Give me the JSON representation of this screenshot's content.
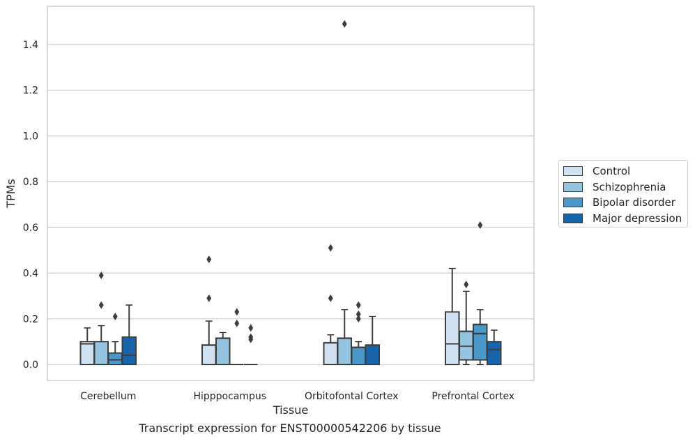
{
  "chart_data": {
    "type": "box",
    "title": "",
    "xlabel": "Tissue",
    "ylabel": "TPMs",
    "caption": "Transcript expression for ENST00000542206 by tissue",
    "ylim": [
      -0.07,
      1.57
    ],
    "yticks": [
      "0.0",
      "0.2",
      "0.4",
      "0.6",
      "0.8",
      "1.0",
      "1.2",
      "1.4"
    ],
    "grid": true,
    "legend_position": "right",
    "categories": [
      "Cerebellum",
      "Hipppocampus",
      "Orbitofontal Cortex",
      "Prefrontal Cortex"
    ],
    "series": [
      {
        "name": "Control",
        "color": "#d0e1f2",
        "boxes": [
          {
            "q1": 0.0,
            "median": 0.09,
            "q3": 0.1,
            "whisker_low": 0.0,
            "whisker_high": 0.16,
            "outliers": []
          },
          {
            "q1": 0.0,
            "median": 0.0,
            "q3": 0.085,
            "whisker_low": 0.0,
            "whisker_high": 0.19,
            "outliers": [
              0.29,
              0.46
            ]
          },
          {
            "q1": 0.0,
            "median": 0.0,
            "q3": 0.095,
            "whisker_low": 0.0,
            "whisker_high": 0.13,
            "outliers": [
              0.29,
              0.51
            ]
          },
          {
            "q1": 0.0,
            "median": 0.09,
            "q3": 0.23,
            "whisker_low": 0.0,
            "whisker_high": 0.42,
            "outliers": []
          }
        ]
      },
      {
        "name": "Schizophrenia",
        "color": "#94c4df",
        "boxes": [
          {
            "q1": 0.0,
            "median": 0.0,
            "q3": 0.1,
            "whisker_low": 0.0,
            "whisker_high": 0.17,
            "outliers": [
              0.26,
              0.39
            ]
          },
          {
            "q1": 0.0,
            "median": 0.0,
            "q3": 0.115,
            "whisker_low": 0.0,
            "whisker_high": 0.14,
            "outliers": []
          },
          {
            "q1": 0.0,
            "median": 0.0,
            "q3": 0.115,
            "whisker_low": 0.0,
            "whisker_high": 0.24,
            "outliers": [
              1.49
            ]
          },
          {
            "q1": 0.02,
            "median": 0.08,
            "q3": 0.145,
            "whisker_low": 0.0,
            "whisker_high": 0.32,
            "outliers": [
              0.35
            ]
          }
        ]
      },
      {
        "name": "Bipolar disorder",
        "color": "#4a98c9",
        "boxes": [
          {
            "q1": 0.0,
            "median": 0.02,
            "q3": 0.05,
            "whisker_low": 0.0,
            "whisker_high": 0.1,
            "outliers": [
              0.21
            ]
          },
          {
            "q1": 0.0,
            "median": 0.0,
            "q3": 0.0,
            "whisker_low": 0.0,
            "whisker_high": 0.0,
            "outliers": [
              0.18,
              0.23
            ]
          },
          {
            "q1": 0.0,
            "median": 0.0,
            "q3": 0.075,
            "whisker_low": 0.0,
            "whisker_high": 0.1,
            "outliers": [
              0.2,
              0.22,
              0.26
            ]
          },
          {
            "q1": 0.02,
            "median": 0.135,
            "q3": 0.175,
            "whisker_low": 0.0,
            "whisker_high": 0.24,
            "outliers": [
              0.61
            ]
          }
        ]
      },
      {
        "name": "Major depression",
        "color": "#1764ab",
        "boxes": [
          {
            "q1": 0.0,
            "median": 0.04,
            "q3": 0.12,
            "whisker_low": 0.0,
            "whisker_high": 0.26,
            "outliers": []
          },
          {
            "q1": 0.0,
            "median": 0.0,
            "q3": 0.0,
            "whisker_low": 0.0,
            "whisker_high": 0.0,
            "outliers": [
              0.11,
              0.12,
              0.16
            ]
          },
          {
            "q1": 0.0,
            "median": 0.0,
            "q3": 0.085,
            "whisker_low": 0.0,
            "whisker_high": 0.21,
            "outliers": []
          },
          {
            "q1": 0.0,
            "median": 0.065,
            "q3": 0.1,
            "whisker_low": 0.0,
            "whisker_high": 0.15,
            "outliers": []
          }
        ]
      }
    ]
  }
}
